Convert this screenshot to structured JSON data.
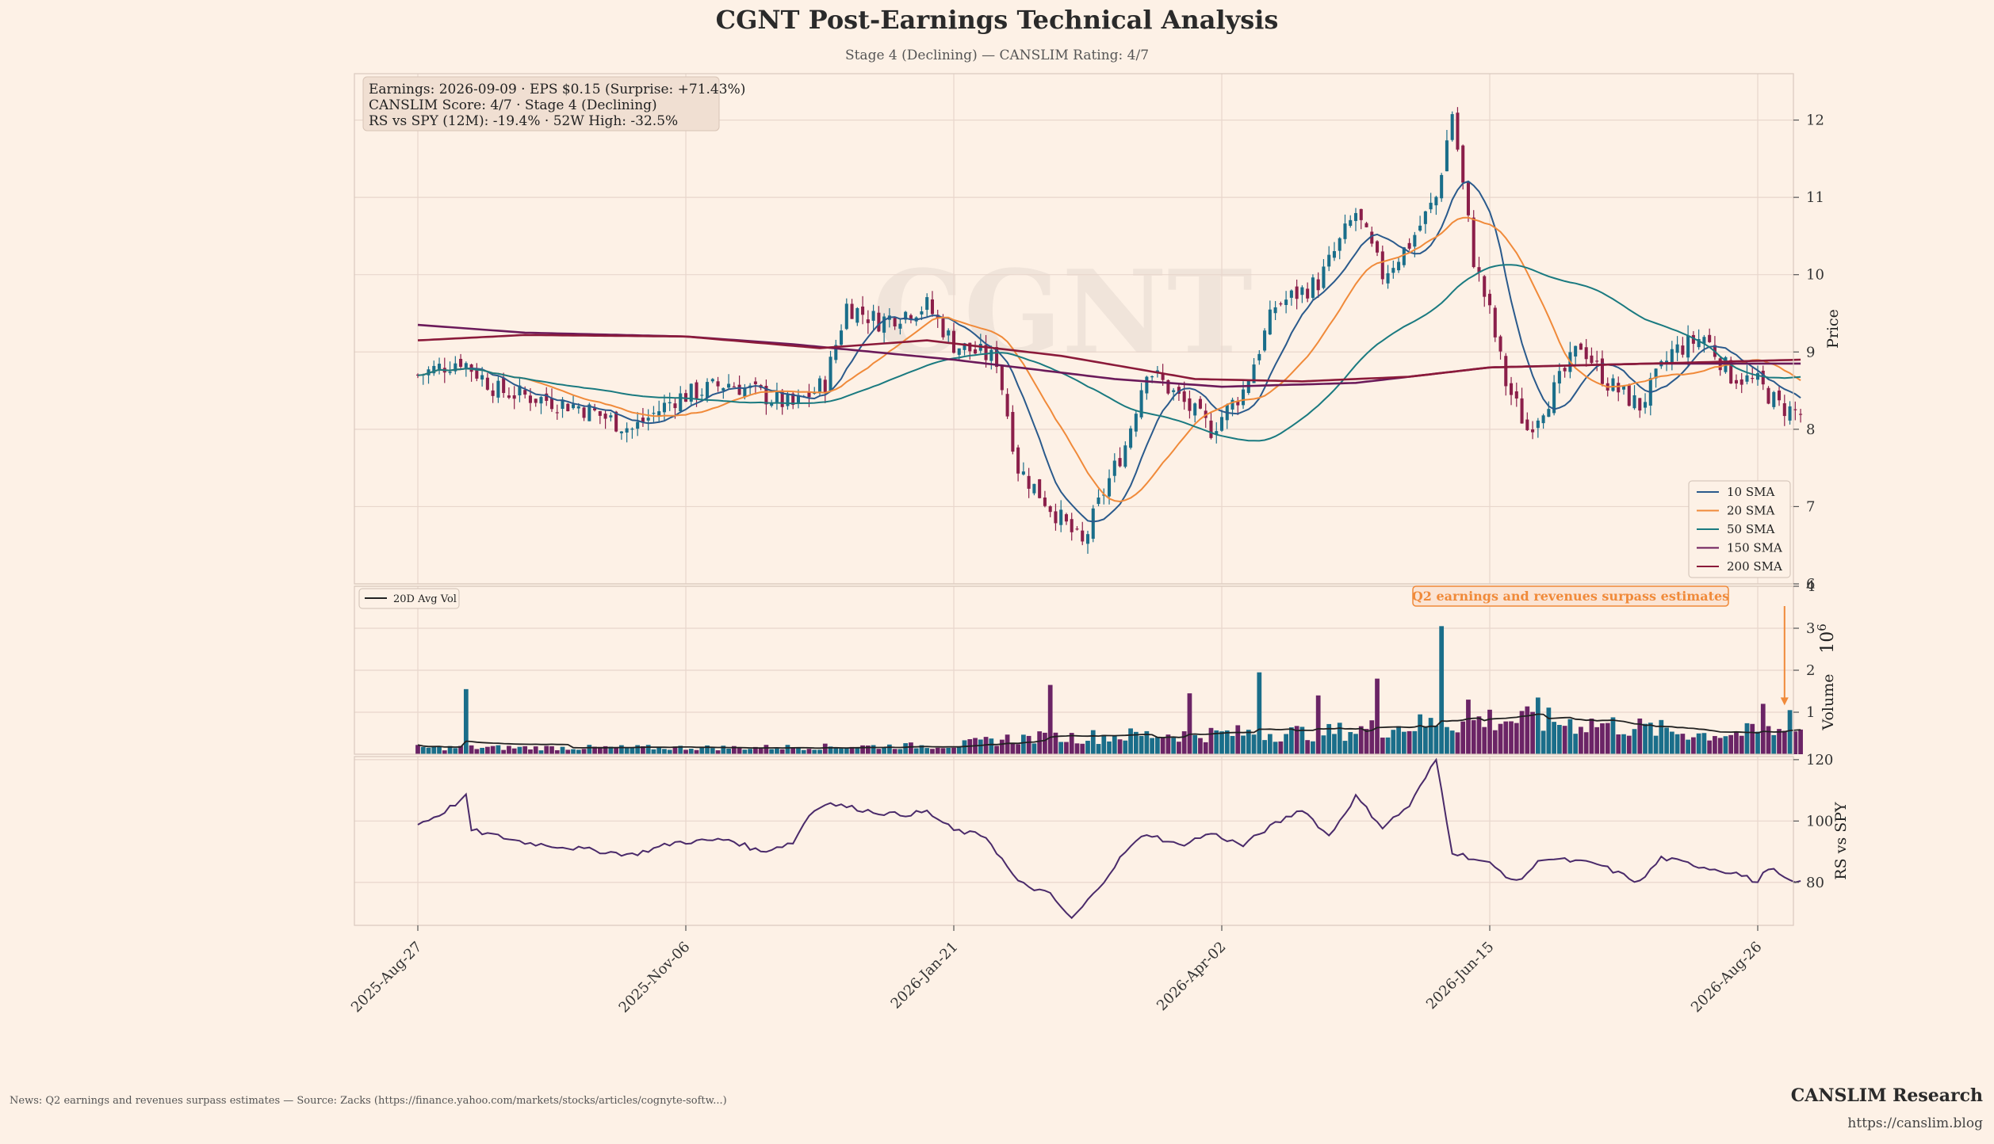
{
  "title": "CGNT Post-Earnings Technical Analysis",
  "subtitle": "Stage 4 (Declining) — CANSLIM Rating: 4/7",
  "watermark": "CGNT",
  "info_box": [
    "Earnings: 2026-09-09 · EPS $0.15 (Surprise: +71.43%)",
    "CANSLIM Score: 4/7 · Stage 4 (Declining)",
    "RS vs SPY (12M): -19.4% · 52W High: -32.5%"
  ],
  "annotation": "Q2 earnings and revenues surpass estimates",
  "footer_news": "News: Q2 earnings and revenues surpass estimates — Source: Zacks (https://finance.yahoo.com/markets/stocks/articles/cognyte-softw...)",
  "brand": "CANSLIM Research",
  "brand_url": "https://canslim.blog",
  "colors": {
    "background": "#fdf1e6",
    "up": "#1a6e8a",
    "down": "#8b1f4a",
    "volume_up": "#1a6e8a",
    "volume_down": "#6b2466",
    "sma10": "#2a5a8c",
    "sma20": "#f08a3a",
    "sma50": "#1a7a80",
    "sma150": "#6b1a5a",
    "sma200": "#8b1a3a",
    "rs": "#4a2a6a",
    "grid": "#e8d6cc"
  },
  "chart_data": [
    {
      "type": "candlestick",
      "panel": "price",
      "ylabel": "Price",
      "ylim": [
        6,
        12.6
      ],
      "y_ticks": [
        6,
        7,
        8,
        9,
        10,
        11,
        12
      ],
      "x_tick_labels": [
        "2025-Aug-27",
        "2025-Nov-06",
        "2026-Jan-21",
        "2026-Apr-02",
        "2026-Jun-15",
        "2026-Aug-26"
      ],
      "x_tick_index": [
        0,
        50,
        100,
        150,
        200,
        250
      ],
      "n_points": 259,
      "close_anchors": [
        [
          0,
          8.7
        ],
        [
          8,
          8.9
        ],
        [
          15,
          8.5
        ],
        [
          30,
          8.3
        ],
        [
          40,
          8.0
        ],
        [
          48,
          8.4
        ],
        [
          58,
          8.6
        ],
        [
          70,
          8.3
        ],
        [
          76,
          8.6
        ],
        [
          80,
          9.6
        ],
        [
          86,
          9.4
        ],
        [
          95,
          9.6
        ],
        [
          100,
          9.1
        ],
        [
          108,
          8.9
        ],
        [
          112,
          7.5
        ],
        [
          118,
          7.0
        ],
        [
          124,
          6.5
        ],
        [
          128,
          7.2
        ],
        [
          132,
          7.8
        ],
        [
          136,
          8.8
        ],
        [
          142,
          8.4
        ],
        [
          148,
          8.0
        ],
        [
          154,
          8.5
        ],
        [
          160,
          9.6
        ],
        [
          168,
          9.9
        ],
        [
          175,
          10.8
        ],
        [
          180,
          10.0
        ],
        [
          185,
          10.4
        ],
        [
          190,
          11.0
        ],
        [
          193,
          12.1
        ],
        [
          197,
          10.2
        ],
        [
          200,
          9.5
        ],
        [
          203,
          8.6
        ],
        [
          207,
          8.0
        ],
        [
          212,
          8.5
        ],
        [
          217,
          9.1
        ],
        [
          222,
          8.6
        ],
        [
          228,
          8.3
        ],
        [
          234,
          9.0
        ],
        [
          240,
          9.2
        ],
        [
          245,
          8.7
        ],
        [
          250,
          8.6
        ],
        [
          254,
          8.3
        ],
        [
          258,
          8.2
        ]
      ],
      "legend": [
        "10 SMA",
        "20 SMA",
        "50 SMA",
        "150 SMA",
        "200 SMA"
      ],
      "legend_position": "lower-right",
      "sma_windows": [
        10,
        20,
        50
      ]
    },
    {
      "type": "line",
      "panel": "long_sma",
      "series": [
        {
          "name": "150 SMA",
          "points": [
            [
              0,
              9.35
            ],
            [
              20,
              9.25
            ],
            [
              50,
              9.2
            ],
            [
              70,
              9.1
            ],
            [
              100,
              8.9
            ],
            [
              130,
              8.65
            ],
            [
              150,
              8.55
            ],
            [
              175,
              8.6
            ],
            [
              200,
              8.8
            ],
            [
              230,
              8.85
            ],
            [
              258,
              8.85
            ]
          ]
        },
        {
          "name": "200 SMA",
          "points": [
            [
              0,
              9.15
            ],
            [
              20,
              9.22
            ],
            [
              50,
              9.2
            ],
            [
              75,
              9.05
            ],
            [
              95,
              9.15
            ],
            [
              120,
              8.95
            ],
            [
              145,
              8.65
            ],
            [
              165,
              8.62
            ],
            [
              185,
              8.68
            ],
            [
              200,
              8.8
            ],
            [
              230,
              8.85
            ],
            [
              258,
              8.9
            ]
          ]
        }
      ]
    },
    {
      "type": "bar",
      "panel": "volume",
      "ylabel": "Volume",
      "unit_label": "10^6",
      "ylim": [
        0,
        4
      ],
      "y_ticks": [
        1,
        2,
        3,
        4
      ],
      "legend": [
        "20D Avg Vol"
      ],
      "legend_position": "top-left",
      "baseline": [
        [
          0,
          0.15
        ],
        [
          60,
          0.15
        ],
        [
          100,
          0.2
        ],
        [
          110,
          0.35
        ],
        [
          140,
          0.45
        ],
        [
          170,
          0.5
        ],
        [
          200,
          0.8
        ],
        [
          220,
          0.7
        ],
        [
          240,
          0.45
        ],
        [
          258,
          0.55
        ]
      ],
      "spikes": [
        [
          9,
          1.55
        ],
        [
          118,
          1.65
        ],
        [
          144,
          1.45
        ],
        [
          157,
          1.95
        ],
        [
          168,
          1.4
        ],
        [
          179,
          1.8
        ],
        [
          191,
          3.05
        ],
        [
          196,
          1.3
        ],
        [
          209,
          1.35
        ],
        [
          251,
          1.2
        ],
        [
          256,
          1.05
        ]
      ]
    },
    {
      "type": "line",
      "panel": "rs",
      "ylabel": "RS vs SPY",
      "ylim": [
        66,
        121
      ],
      "y_ticks": [
        80,
        100,
        120
      ],
      "points": [
        [
          0,
          99
        ],
        [
          4,
          102
        ],
        [
          9,
          108
        ],
        [
          10,
          97
        ],
        [
          20,
          93
        ],
        [
          40,
          89
        ],
        [
          48,
          93
        ],
        [
          58,
          94
        ],
        [
          64,
          90
        ],
        [
          70,
          93
        ],
        [
          73,
          102
        ],
        [
          76,
          106
        ],
        [
          85,
          103
        ],
        [
          90,
          102
        ],
        [
          95,
          103
        ],
        [
          100,
          97
        ],
        [
          106,
          95
        ],
        [
          112,
          80
        ],
        [
          118,
          76
        ],
        [
          122,
          68
        ],
        [
          126,
          76
        ],
        [
          132,
          90
        ],
        [
          136,
          96
        ],
        [
          142,
          92
        ],
        [
          148,
          96
        ],
        [
          154,
          92
        ],
        [
          158,
          97
        ],
        [
          165,
          104
        ],
        [
          170,
          95
        ],
        [
          175,
          108
        ],
        [
          180,
          98
        ],
        [
          185,
          105
        ],
        [
          190,
          120
        ],
        [
          193,
          90
        ],
        [
          200,
          86
        ],
        [
          205,
          80
        ],
        [
          210,
          88
        ],
        [
          220,
          86
        ],
        [
          228,
          80
        ],
        [
          232,
          88
        ],
        [
          240,
          85
        ],
        [
          246,
          83
        ],
        [
          250,
          80
        ],
        [
          252,
          85
        ],
        [
          256,
          80
        ],
        [
          258,
          80
        ]
      ]
    }
  ]
}
